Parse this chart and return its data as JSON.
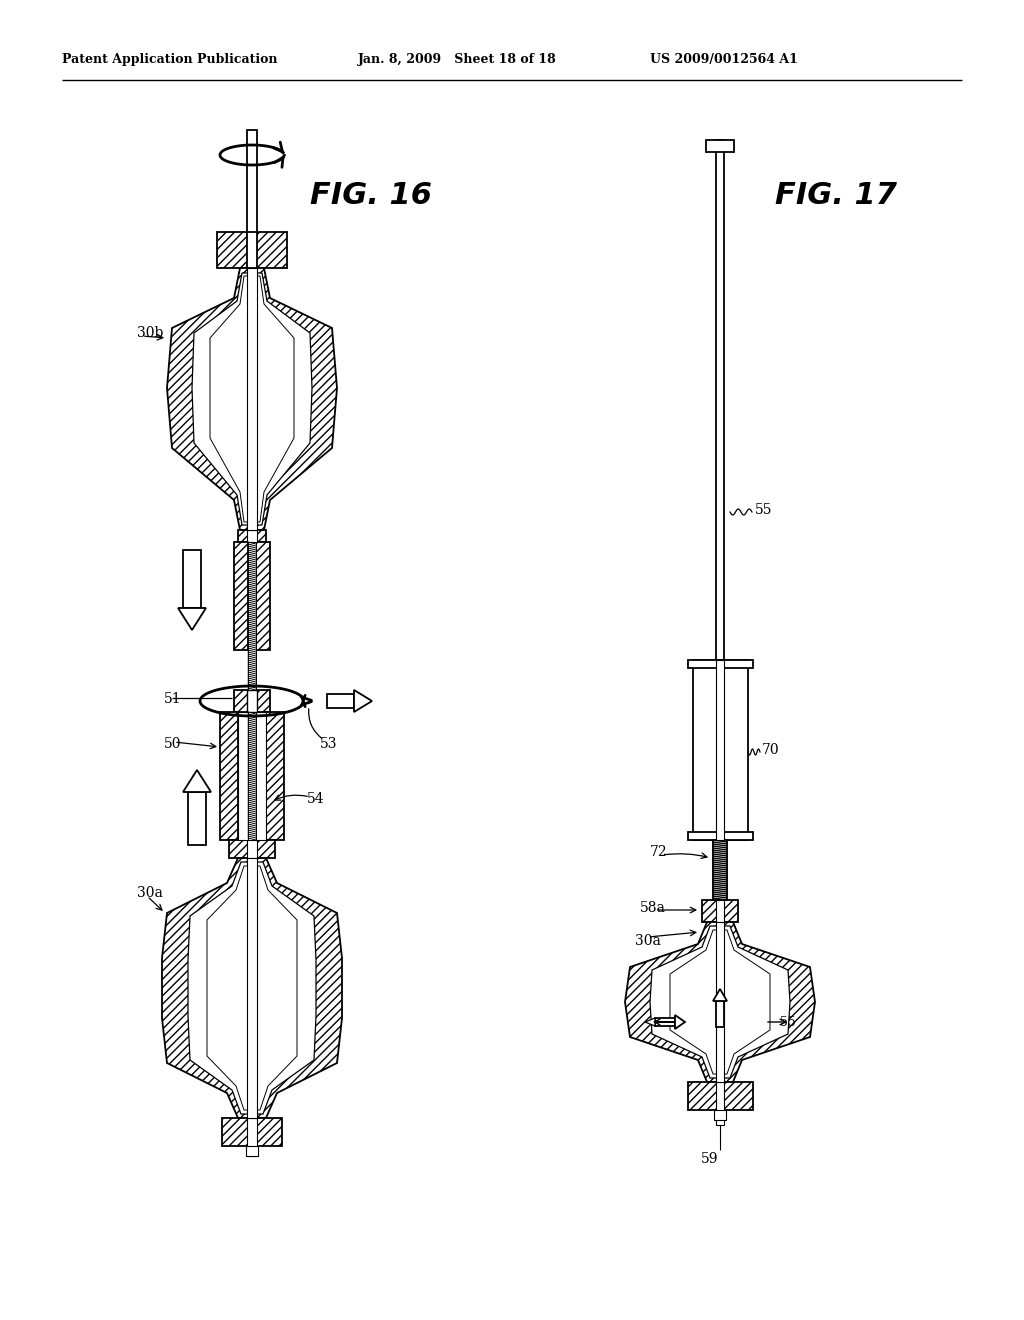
{
  "header_left": "Patent Application Publication",
  "header_mid": "Jan. 8, 2009   Sheet 18 of 18",
  "header_right": "US 2009/0012564 A1",
  "fig16_label": "FIG. 16",
  "fig17_label": "FIG. 17",
  "bg_color": "#ffffff",
  "line_color": "#000000"
}
